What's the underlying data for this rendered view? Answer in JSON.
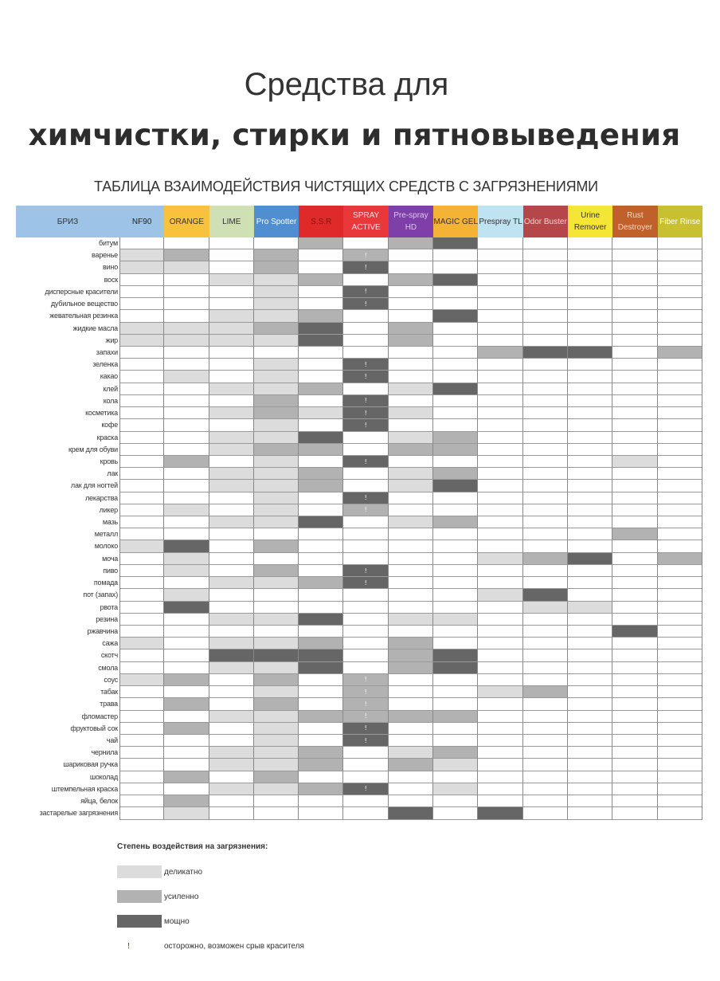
{
  "title_line1": "Средства для",
  "title_line2": "химчистки, стирки и пятновыведения",
  "subtitle": "ТАБЛИЦА ВЗАИМОДЕЙСТВИЯ ЧИСТЯЩИХ СРЕДСТВ С ЗАГРЯЗНЕНИЯМИ",
  "brand": "БРИЗ",
  "columns": [
    {
      "name": "NF90",
      "bg": "#9dc3e6",
      "fg": "#222"
    },
    {
      "name": "ORANGE",
      "bg": "#f9c23c",
      "fg": "#333"
    },
    {
      "name": "LIME",
      "bg": "#cfe0b4",
      "fg": "#333"
    },
    {
      "name": "Pro Spotter",
      "bg": "#4f8ed0",
      "fg": "#fff"
    },
    {
      "name": "S.S.R",
      "bg": "#e02a2a",
      "fg": "#8a1010"
    },
    {
      "name": "SPRAY ACTIVE",
      "bg": "#e8383a",
      "fg": "#fde"
    },
    {
      "name": "Pre-spray HD",
      "bg": "#7e3fa8",
      "fg": "#ddc8f0"
    },
    {
      "name": "MAGIC GEL",
      "bg": "#f5b335",
      "fg": "#333"
    },
    {
      "name": "Prespray TL",
      "bg": "#bfe3f0",
      "fg": "#333"
    },
    {
      "name": "Odor Buster",
      "bg": "#b5474a",
      "fg": "#f3d0d0"
    },
    {
      "name": "Urine Remover",
      "bg": "#f5e535",
      "fg": "#333"
    },
    {
      "name": "Rust Destroyer",
      "bg": "#c0602a",
      "fg": "#f5d8c0"
    },
    {
      "name": "Fiber Rinse",
      "bg": "#c8c030",
      "fg": "#fff"
    }
  ],
  "level_codes": {
    "0": "нет",
    "1": "деликатно",
    "2": "усиленно",
    "3": "мощно",
    "L": "деликатно + !",
    "M": "усиленно + !",
    "D": "мощно + !"
  },
  "rows": [
    {
      "label": "битум",
      "cells": "0000202300000"
    },
    {
      "label": "варенье",
      "cells": "12020M0000000"
    },
    {
      "label": "вино",
      "cells": "11020D0000000"
    },
    {
      "label": "воск",
      "cells": "0011202300000"
    },
    {
      "label": "дисперсные красители",
      "cells": "00010D0000000"
    },
    {
      "label": "дубильное вещество",
      "cells": "00010D0000000"
    },
    {
      "label": "жевательная резинка",
      "cells": "0011200300000"
    },
    {
      "label": "жидкие масла",
      "cells": "1112302000000"
    },
    {
      "label": "жир",
      "cells": "1111302000000"
    },
    {
      "label": "запахи",
      "cells": "0000000023302"
    },
    {
      "label": "зеленка",
      "cells": "00010D0000000"
    },
    {
      "label": "какао",
      "cells": "01010D0000000"
    },
    {
      "label": "клей",
      "cells": "0011201300000"
    },
    {
      "label": "кола",
      "cells": "00020D0000000"
    },
    {
      "label": "косметика",
      "cells": "00121D1000000"
    },
    {
      "label": "кофе",
      "cells": "00010D0000000"
    },
    {
      "label": "краска",
      "cells": "0011301200000"
    },
    {
      "label": "крем для обуви",
      "cells": "0012202200000"
    },
    {
      "label": "кровь",
      "cells": "02010D0000010"
    },
    {
      "label": "лак",
      "cells": "0011201200000"
    },
    {
      "label": "лак для ногтей",
      "cells": "0011201300000"
    },
    {
      "label": "лекарства",
      "cells": "00010D0000000"
    },
    {
      "label": "ликер",
      "cells": "01010M0000000"
    },
    {
      "label": "мазь",
      "cells": "0011301200000"
    },
    {
      "label": "металл",
      "cells": "0000000000020"
    },
    {
      "label": "молоко",
      "cells": "1302000000000"
    },
    {
      "label": "моча",
      "cells": "0100000012302"
    },
    {
      "label": "пиво",
      "cells": "01020D0000000"
    },
    {
      "label": "помада",
      "cells": "00112D0000000"
    },
    {
      "label": "пот (запах)",
      "cells": "0100000013000"
    },
    {
      "label": "рвота",
      "cells": "0300000001100"
    },
    {
      "label": "резина",
      "cells": "0011301100000"
    },
    {
      "label": "ржавчина",
      "cells": "0000000000030"
    },
    {
      "label": "сажа",
      "cells": "1011202000000"
    },
    {
      "label": "скотч",
      "cells": "0033302300000"
    },
    {
      "label": "смола",
      "cells": "0011302300000"
    },
    {
      "label": "соус",
      "cells": "12020M0000000"
    },
    {
      "label": "табак",
      "cells": "00010M0012000"
    },
    {
      "label": "трава",
      "cells": "02020M0000000"
    },
    {
      "label": "фломастер",
      "cells": "00112M2200000"
    },
    {
      "label": "фруктовый сок",
      "cells": "02010D0000000"
    },
    {
      "label": "чай",
      "cells": "00010D0000000"
    },
    {
      "label": "чернила",
      "cells": "0011201200000"
    },
    {
      "label": "шариковая ручка",
      "cells": "0011202100000"
    },
    {
      "label": "шоколад",
      "cells": "0202000000000"
    },
    {
      "label": "штемпельная краска",
      "cells": "00112D0100000"
    },
    {
      "label": "яйца, белок",
      "cells": "0200000000000"
    },
    {
      "label": "застарелые загрязнения",
      "cells": "0100003030000"
    }
  ],
  "legend": {
    "title": "Степень воздействия на загрязнения:",
    "light": "деликатно",
    "medium": "усиленно",
    "strong": "мощно",
    "warn_mark": "!",
    "warn": "осторожно, возможен срыв красителя"
  }
}
